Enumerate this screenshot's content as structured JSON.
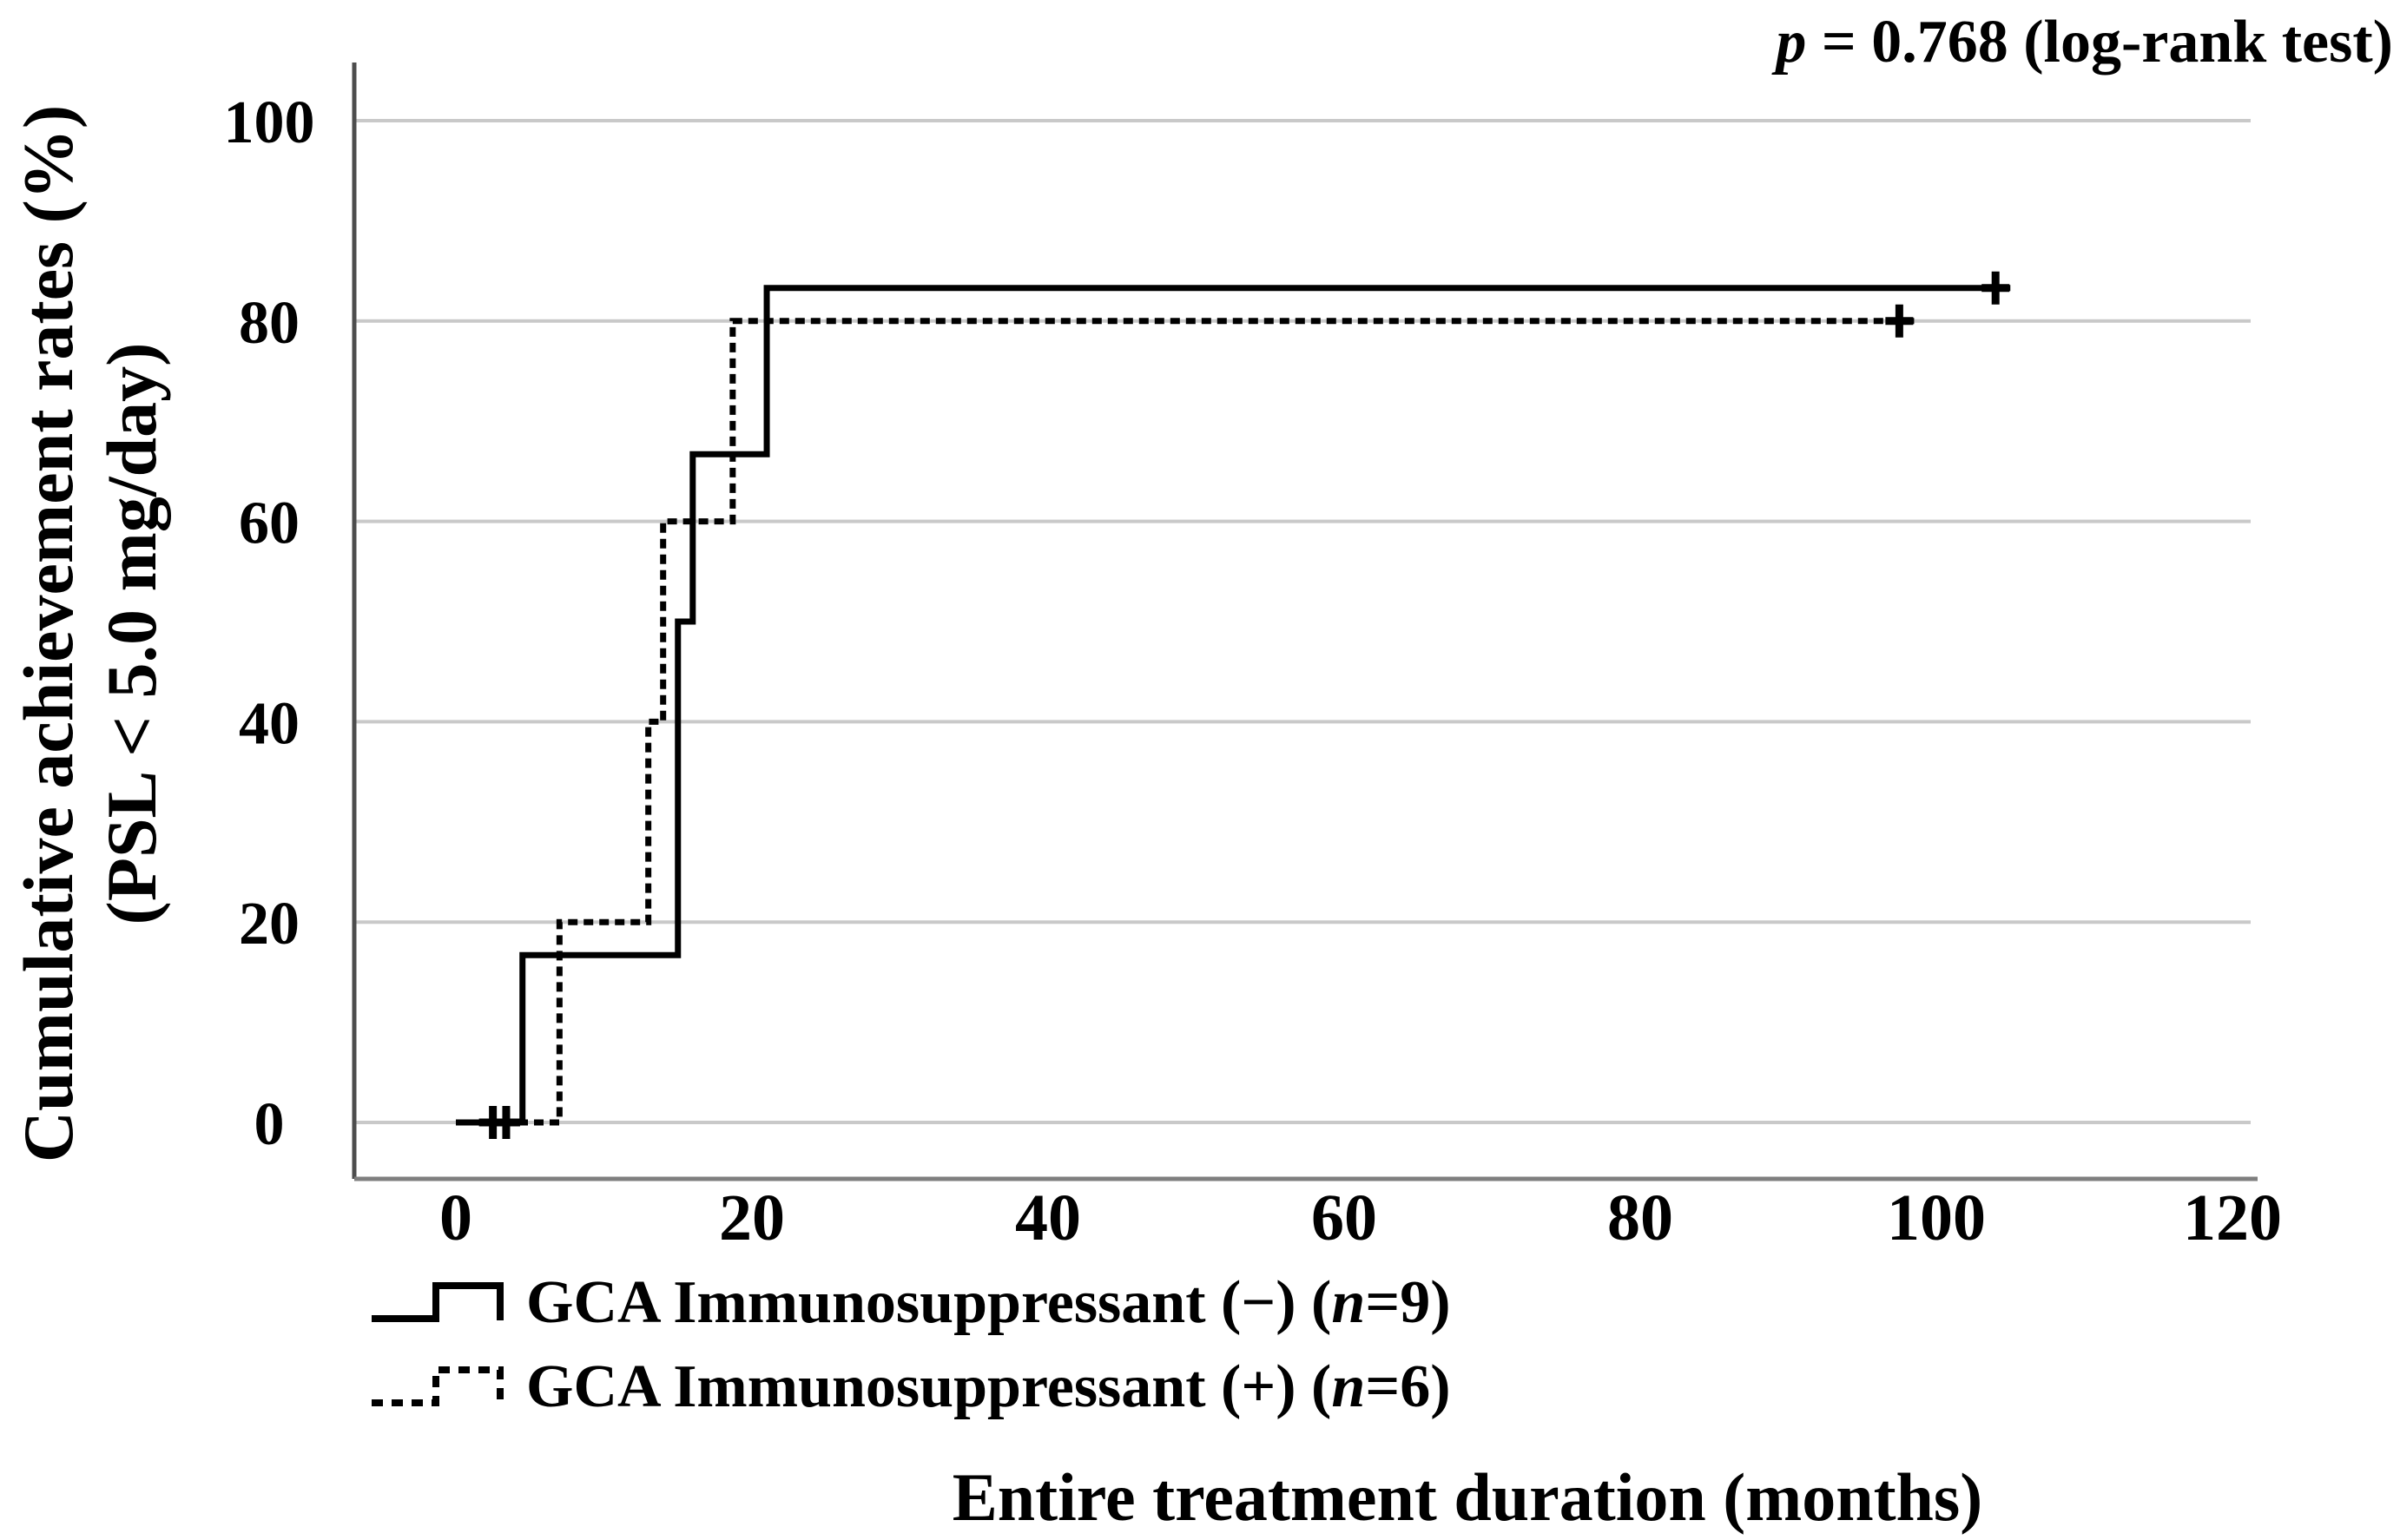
{
  "annotation": {
    "p_symbol": "p",
    "p_rest": " = 0.768 (log-rank test)"
  },
  "axes": {
    "x_label": "Entire treatment duration (months)",
    "y_label_line1": "Cumulative achievement rates (%)",
    "y_label_line2": "(PSL < 5.0 mg/day)",
    "x_ticks": [
      0,
      20,
      40,
      60,
      80,
      100,
      120
    ],
    "y_ticks": [
      0,
      20,
      40,
      60,
      80,
      100
    ]
  },
  "chart_data": {
    "type": "line",
    "subtype": "kaplan-meier-cumulative-step",
    "title": "",
    "xlabel": "Entire treatment duration (months)",
    "ylabel": "Cumulative achievement rates (%) (PSL < 5.0 mg/day)",
    "annotation": "p = 0.768 (log-rank test)",
    "xlim": [
      0,
      120
    ],
    "ylim": [
      0,
      100
    ],
    "x_ticks": [
      0,
      20,
      40,
      60,
      80,
      100,
      120
    ],
    "y_ticks": [
      0,
      20,
      40,
      60,
      80,
      100
    ],
    "grid": "horizontal",
    "legend_position": "below-left",
    "series": [
      {
        "name": "GCA Immunosuppressant (−) (n=9)",
        "n": 9,
        "line_style": "solid",
        "color": "#000000",
        "steps": [
          [
            0,
            0
          ],
          [
            4.5,
            0
          ],
          [
            4.5,
            16.7
          ],
          [
            15,
            16.7
          ],
          [
            15,
            50
          ],
          [
            16,
            50
          ],
          [
            16,
            66.7
          ],
          [
            21,
            66.7
          ],
          [
            21,
            83.3
          ],
          [
            105,
            83.3
          ]
        ],
        "censor_marks": [
          [
            2.5,
            0
          ],
          [
            3.4,
            0
          ],
          [
            104,
            83.3
          ]
        ]
      },
      {
        "name": "GCA Immunosuppressant (+) (n=6)",
        "n": 6,
        "line_style": "dashed",
        "color": "#000000",
        "steps": [
          [
            0,
            0
          ],
          [
            7,
            0
          ],
          [
            7,
            20
          ],
          [
            13,
            20
          ],
          [
            13,
            40
          ],
          [
            14,
            40
          ],
          [
            14,
            60
          ],
          [
            18.7,
            60
          ],
          [
            18.7,
            80
          ],
          [
            98.5,
            80
          ]
        ],
        "censor_marks": [
          [
            97.5,
            80
          ]
        ]
      }
    ]
  },
  "legend": [
    {
      "prefix": "GCA Immunosuppressant (−) (",
      "n_symbol": "n",
      "suffix": "=9)",
      "style": "solid"
    },
    {
      "prefix": "GCA Immunosuppressant (+) (",
      "n_symbol": "n",
      "suffix": "=6)",
      "style": "dashed"
    }
  ],
  "colors": {
    "curve": "#000000",
    "gridline": "#c9c9c9",
    "y_axis_line": "#4d4d4d",
    "x_axis_line": "#7f7f7f",
    "background": "#ffffff",
    "text": "#000000"
  }
}
